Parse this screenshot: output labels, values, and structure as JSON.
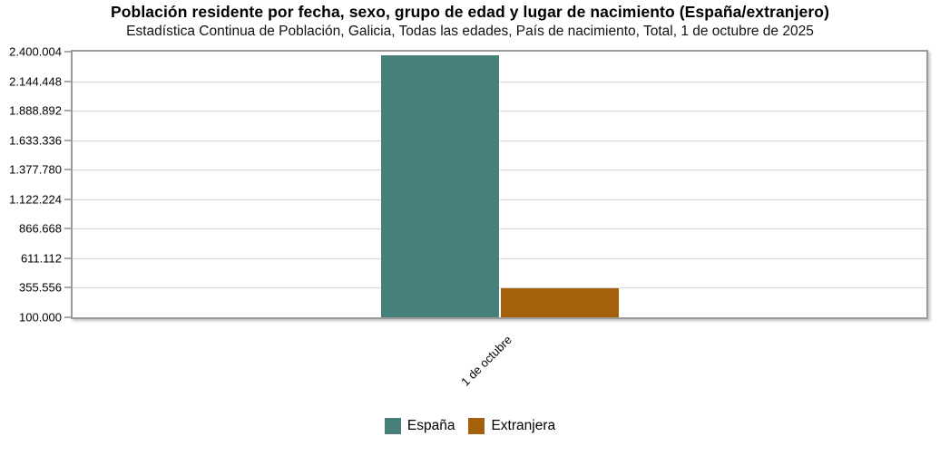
{
  "header": {
    "title": "Población residente por fecha, sexo, grupo de edad y lugar de nacimiento (España/extranjero)",
    "subtitle": "Estadística Continua de Población, Galicia, Todas las edades, País de nacimiento, Total, 1 de octubre de 2025"
  },
  "chart_data": {
    "type": "bar",
    "title": "Población residente por fecha, sexo, grupo de edad y lugar de nacimiento (España/extranjero)",
    "subtitle": "Estadística Continua de Población, Galicia, Todas las edades, País de nacimiento, Total, 1 de octubre de 2025",
    "categories": [
      "1 de octubre"
    ],
    "series": [
      {
        "name": "España",
        "color": "#47807A",
        "values": [
          2368000
        ]
      },
      {
        "name": "Extranjera",
        "color": "#A4610B",
        "values": [
          355000
        ]
      }
    ],
    "xlabel": "",
    "ylabel": "",
    "ylim": [
      100000,
      2400004
    ],
    "yticks": [
      100000,
      355556,
      611112,
      866668,
      1122224,
      1377780,
      1633336,
      1888892,
      2144448,
      2400004
    ],
    "ytick_labels": [
      "100.000",
      "355.556",
      "611.112",
      "866.668",
      "1.122.224",
      "1.377.780",
      "1.633.336",
      "1.888.892",
      "2.144.448",
      "2.400.004"
    ],
    "grid": true,
    "legend_position": "bottom"
  },
  "colors": {
    "espana": "#47807A",
    "extranjera": "#A4610B",
    "plot_border": "#9b9b9b",
    "gridline": "#d9d9d9"
  }
}
